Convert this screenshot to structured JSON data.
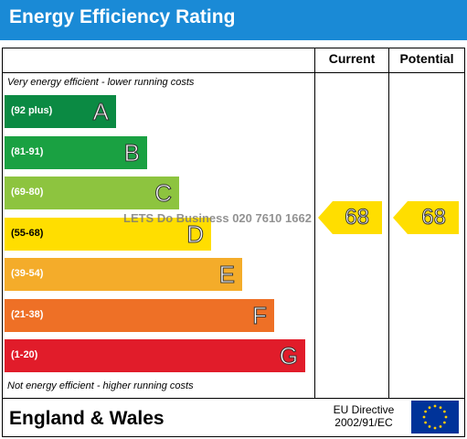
{
  "header": {
    "title": "Energy Efficiency Rating"
  },
  "columns": {
    "current": "Current",
    "potential": "Potential"
  },
  "notes": {
    "top": "Very energy efficient - lower running costs",
    "bottom": "Not energy efficient - higher running costs"
  },
  "watermark": "LETS Do Business 020 7610 1662",
  "footer": {
    "region": "England & Wales",
    "directive_line1": "EU Directive",
    "directive_line2": "2002/91/EC"
  },
  "chart_data": {
    "type": "bar",
    "title": "Energy Efficiency Rating",
    "categories": [
      "A",
      "B",
      "C",
      "D",
      "E",
      "F",
      "G"
    ],
    "bands": [
      {
        "letter": "A",
        "range": "(92 plus)",
        "color": "#0b8a43"
      },
      {
        "letter": "B",
        "range": "(81-91)",
        "color": "#1aa142"
      },
      {
        "letter": "C",
        "range": "(69-80)",
        "color": "#8dc43f"
      },
      {
        "letter": "D",
        "range": "(55-68)",
        "color": "#ffde00"
      },
      {
        "letter": "E",
        "range": "(39-54)",
        "color": "#f4ac2a"
      },
      {
        "letter": "F",
        "range": "(21-38)",
        "color": "#ee7026"
      },
      {
        "letter": "G",
        "range": "(1-20)",
        "color": "#e11c2a"
      }
    ],
    "series": [
      {
        "name": "Current",
        "value": 68,
        "band": "D",
        "color": "#ffde00"
      },
      {
        "name": "Potential",
        "value": 68,
        "band": "D",
        "color": "#ffde00"
      }
    ]
  }
}
